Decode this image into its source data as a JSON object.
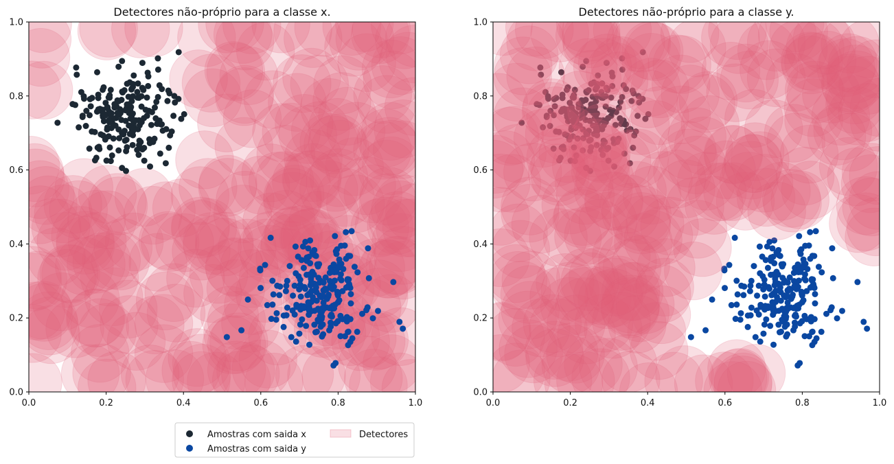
{
  "chart_data": [
    {
      "type": "scatter",
      "title": "Detectores não-próprio para a classe x.",
      "xlim": [
        0.0,
        1.0
      ],
      "ylim": [
        0.0,
        1.0
      ],
      "xticks": [
        "0.0",
        "0.2",
        "0.4",
        "0.6",
        "0.8",
        "1.0"
      ],
      "yticks": [
        "0.0",
        "0.2",
        "0.4",
        "0.6",
        "0.8",
        "1.0"
      ],
      "grid": false,
      "legend_position": "below",
      "clusters": [
        {
          "name": "Amostras com saida x",
          "center": [
            0.245,
            0.745
          ],
          "spread": 0.065,
          "count": 200
        },
        {
          "name": "Amostras com saida y",
          "center": [
            0.755,
            0.255
          ],
          "spread": 0.07,
          "count": 230
        }
      ],
      "detectors": {
        "name": "Detectores",
        "radius": 0.075,
        "count": 300,
        "avoid": "Amostras com saida x"
      }
    },
    {
      "type": "scatter",
      "title": "Detectores não-próprio para a classe y.",
      "xlim": [
        0.0,
        1.0
      ],
      "ylim": [
        0.0,
        1.0
      ],
      "xticks": [
        "0.0",
        "0.2",
        "0.4",
        "0.6",
        "0.8",
        "1.0"
      ],
      "yticks": [
        "0.0",
        "0.2",
        "0.4",
        "0.6",
        "0.8",
        "1.0"
      ],
      "grid": false,
      "clusters": [
        {
          "name": "Amostras com saida x",
          "center": [
            0.245,
            0.745
          ],
          "spread": 0.065,
          "count": 200
        },
        {
          "name": "Amostras com saida y",
          "center": [
            0.755,
            0.255
          ],
          "spread": 0.07,
          "count": 230
        }
      ],
      "detectors": {
        "name": "Detectores",
        "radius": 0.075,
        "count": 300,
        "avoid": "Amostras com saida y"
      }
    }
  ],
  "legend": {
    "items": [
      {
        "label": "Amostras com saida x",
        "kind": "marker",
        "color": "#1c2833"
      },
      {
        "label": "Amostras com saida y",
        "kind": "marker",
        "color": "#0a47a1"
      },
      {
        "label": "Detectores",
        "kind": "patch",
        "color": "#e06078"
      }
    ]
  },
  "colors": {
    "class_x": "#1c2833",
    "class_y": "#0a47a1",
    "detector": "#e06078"
  }
}
